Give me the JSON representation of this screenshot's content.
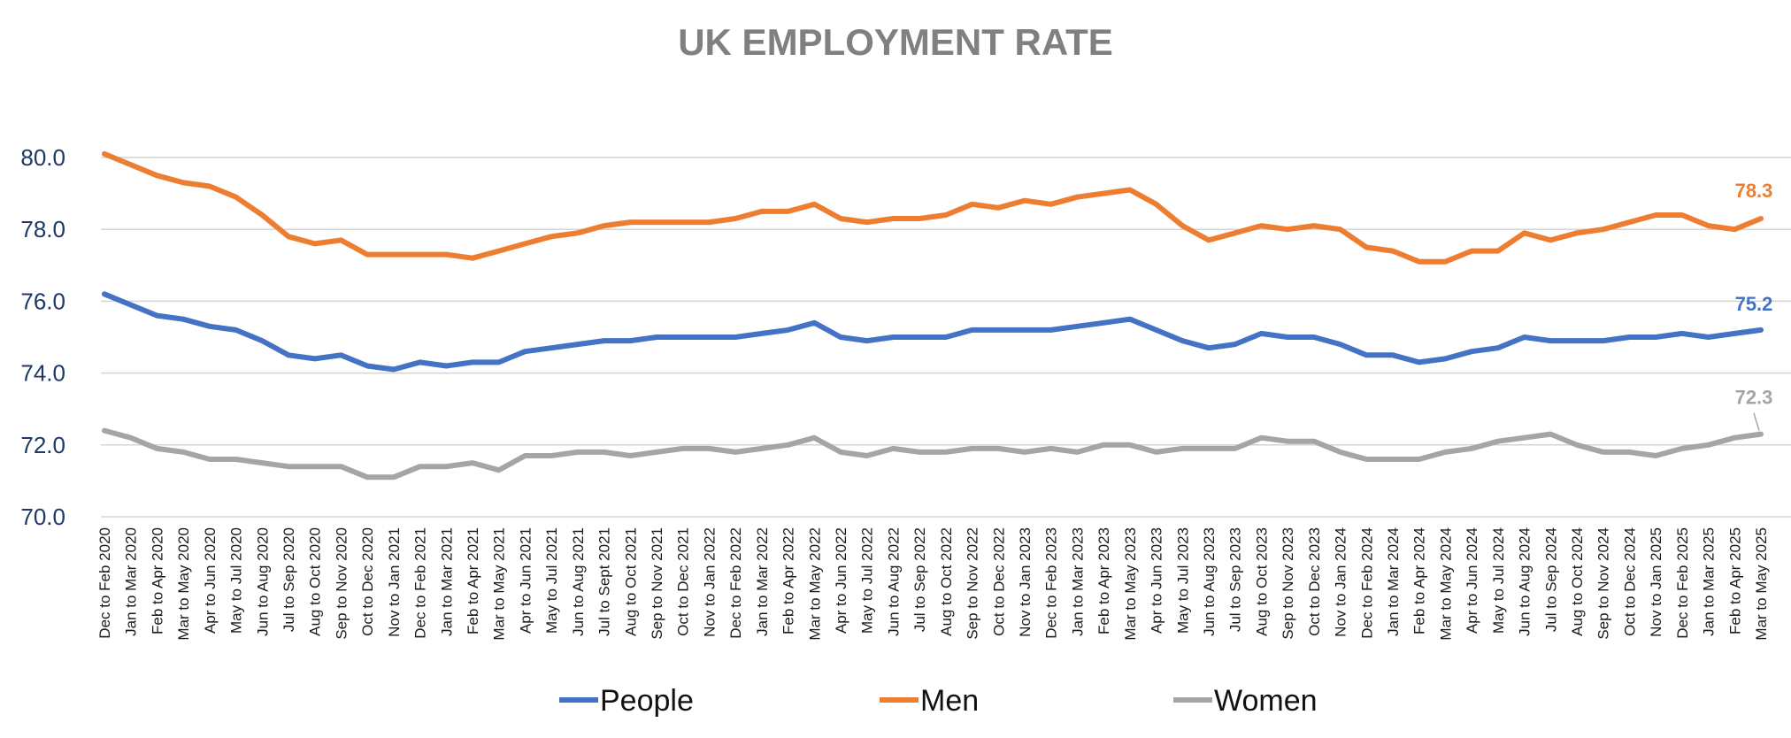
{
  "chart_data": {
    "type": "line",
    "title": "UK EMPLOYMENT RATE",
    "xlabel": "",
    "ylabel": "",
    "ylim": [
      70.0,
      80.0
    ],
    "yticks": [
      "70.0",
      "72.0",
      "74.0",
      "76.0",
      "78.0",
      "80.0"
    ],
    "grid": true,
    "legend": "bottom",
    "categories": [
      "Dec to Feb 2020",
      "Jan to Mar 2020",
      "Feb to Apr 2020",
      "Mar to May 2020",
      "Apr to Jun 2020",
      "May to Jul 2020",
      "Jun to Aug 2020",
      "Jul to Sep 2020",
      "Aug to Oct 2020",
      "Sep to Nov 2020",
      "Oct to Dec 2020",
      "Nov to Jan 2021",
      "Dec to Feb 2021",
      "Jan to Mar 2021",
      "Feb to Apr 2021",
      "Mar to May 2021",
      "Apr to Jun 2021",
      "May to Jul 2021",
      "Jun to Aug 2021",
      "Jul to Sept 2021",
      "Aug to Oct 2021",
      "Sep to Nov 2021",
      "Oct to Dec 2021",
      "Nov to Jan 2022",
      "Dec to Feb 2022",
      "Jan to Mar 2022",
      "Feb to Apr 2022",
      "Mar to May 2022",
      "Apr to Jun 2022",
      "May to Jul 2022",
      "Jun to Aug 2022",
      "Jul to Sep 2022",
      "Aug to Oct 2022",
      "Sep to Nov 2022",
      "Oct to Dec 2022",
      "Nov to Jan 2023",
      "Dec to Feb 2023",
      "Jan to Mar 2023",
      "Feb to Apr 2023",
      "Mar to May 2023",
      "Apr to Jun 2023",
      "May to Jul 2023",
      "Jun to Aug 2023",
      "Jul to Sep 2023",
      "Aug to Oct 2023",
      "Sep to Nov 2023",
      "Oct to Dec 2023",
      "Nov to Jan 2024",
      "Dec to Feb 2024",
      "Jan to Mar 2024",
      "Feb to Apr 2024",
      "Mar to May 2024",
      "Apr to Jun 2024",
      "May to Jul 2024",
      "Jun to Aug 2024",
      "Jul to Sep 2024",
      "Aug to Oct 2024",
      "Sep to Nov 2024",
      "Oct to Dec 2024",
      "Nov to Jan 2025",
      "Dec to Feb 2025",
      "Jan to Mar 2025",
      "Feb to Apr 2025",
      "Mar to May 2025"
    ],
    "series": [
      {
        "name": "People",
        "color": "#4472c4",
        "end_label": "75.2",
        "values": [
          76.2,
          75.9,
          75.6,
          75.5,
          75.3,
          75.2,
          74.9,
          74.5,
          74.4,
          74.5,
          74.2,
          74.1,
          74.3,
          74.2,
          74.3,
          74.3,
          74.6,
          74.7,
          74.8,
          74.9,
          74.9,
          75.0,
          75.0,
          75.0,
          75.0,
          75.1,
          75.2,
          75.4,
          75.0,
          74.9,
          75.0,
          75.0,
          75.0,
          75.2,
          75.2,
          75.2,
          75.2,
          75.3,
          75.4,
          75.5,
          75.2,
          74.9,
          74.7,
          74.8,
          75.1,
          75.0,
          75.0,
          74.8,
          74.5,
          74.5,
          74.3,
          74.4,
          74.6,
          74.7,
          75.0,
          74.9,
          74.9,
          74.9,
          75.0,
          75.0,
          75.1,
          75.0,
          75.1,
          75.2
        ]
      },
      {
        "name": "Men",
        "color": "#ed7d31",
        "end_label": "78.3",
        "values": [
          80.1,
          79.8,
          79.5,
          79.3,
          79.2,
          78.9,
          78.4,
          77.8,
          77.6,
          77.7,
          77.3,
          77.3,
          77.3,
          77.3,
          77.2,
          77.4,
          77.6,
          77.8,
          77.9,
          78.1,
          78.2,
          78.2,
          78.2,
          78.2,
          78.3,
          78.5,
          78.5,
          78.7,
          78.3,
          78.2,
          78.3,
          78.3,
          78.4,
          78.7,
          78.6,
          78.8,
          78.7,
          78.9,
          79.0,
          79.1,
          78.7,
          78.1,
          77.7,
          77.9,
          78.1,
          78.0,
          78.1,
          78.0,
          77.5,
          77.4,
          77.1,
          77.1,
          77.4,
          77.4,
          77.9,
          77.7,
          77.9,
          78.0,
          78.2,
          78.4,
          78.4,
          78.1,
          78.0,
          78.3
        ]
      },
      {
        "name": "Women",
        "color": "#a5a5a5",
        "end_label": "72.3",
        "values": [
          72.4,
          72.2,
          71.9,
          71.8,
          71.6,
          71.6,
          71.5,
          71.4,
          71.4,
          71.4,
          71.1,
          71.1,
          71.4,
          71.4,
          71.5,
          71.3,
          71.7,
          71.7,
          71.8,
          71.8,
          71.7,
          71.8,
          71.9,
          71.9,
          71.8,
          71.9,
          72.0,
          72.2,
          71.8,
          71.7,
          71.9,
          71.8,
          71.8,
          71.9,
          71.9,
          71.8,
          71.9,
          71.8,
          72.0,
          72.0,
          71.8,
          71.9,
          71.9,
          71.9,
          72.2,
          72.1,
          72.1,
          71.8,
          71.6,
          71.6,
          71.6,
          71.8,
          71.9,
          72.1,
          72.2,
          72.3,
          72.0,
          71.8,
          71.8,
          71.7,
          71.9,
          72.0,
          72.2,
          72.3
        ]
      }
    ]
  }
}
